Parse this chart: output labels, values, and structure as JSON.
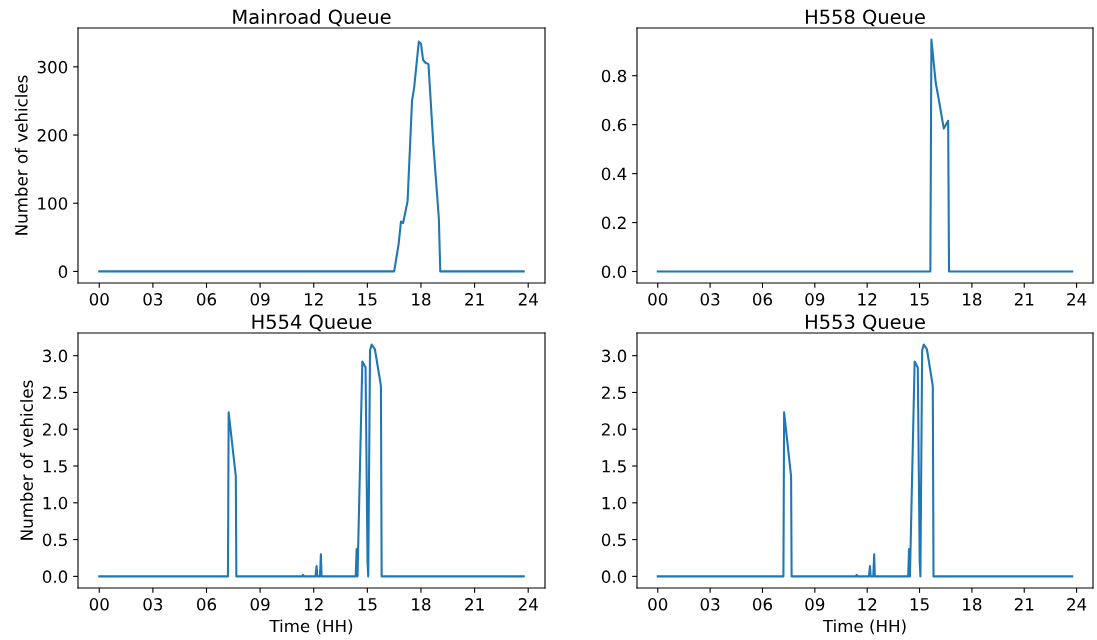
{
  "chart_data": [
    {
      "type": "line",
      "title": "Mainroad Queue",
      "ylabel": "Number of vehicles",
      "xlim": [
        -1.19,
        24.94
      ],
      "ylim": [
        -17,
        357
      ],
      "xticks": [
        {
          "value": 0,
          "label": "00"
        },
        {
          "value": 3,
          "label": "03"
        },
        {
          "value": 6,
          "label": "06"
        },
        {
          "value": 9,
          "label": "09"
        },
        {
          "value": 12,
          "label": "12"
        },
        {
          "value": 15,
          "label": "15"
        },
        {
          "value": 18,
          "label": "18"
        },
        {
          "value": 21,
          "label": "21"
        },
        {
          "value": 24,
          "label": "24"
        }
      ],
      "yticks": [
        0,
        100,
        200,
        300
      ],
      "series": [
        {
          "color": "#1f77b4",
          "x": [
            0,
            16.5,
            16.75,
            16.88,
            17.0,
            17.25,
            17.5,
            17.62,
            17.88,
            18.0,
            18.12,
            18.25,
            18.42,
            18.69,
            19.0,
            19.08,
            23.75
          ],
          "values": [
            0,
            0,
            40,
            73,
            71,
            103,
            250,
            270,
            337,
            334,
            310,
            306,
            304,
            187,
            78,
            0,
            0
          ]
        }
      ]
    },
    {
      "type": "line",
      "title": "H558 Queue",
      "xlim": [
        -1.19,
        24.94
      ],
      "ylim": [
        -0.047,
        0.995
      ],
      "xticks": [
        {
          "value": 0,
          "label": "00"
        },
        {
          "value": 3,
          "label": "03"
        },
        {
          "value": 6,
          "label": "06"
        },
        {
          "value": 9,
          "label": "09"
        },
        {
          "value": 12,
          "label": "12"
        },
        {
          "value": 15,
          "label": "15"
        },
        {
          "value": 18,
          "label": "18"
        },
        {
          "value": 21,
          "label": "21"
        },
        {
          "value": 24,
          "label": "24"
        }
      ],
      "yticks": [
        {
          "value": 0,
          "label": "0.0"
        },
        {
          "value": 0.2,
          "label": "0.2"
        },
        {
          "value": 0.4,
          "label": "0.4"
        },
        {
          "value": 0.6,
          "label": "0.6"
        },
        {
          "value": 0.8,
          "label": "0.8"
        }
      ],
      "series": [
        {
          "color": "#1f77b4",
          "x": [
            0,
            15.62,
            15.68,
            15.93,
            16.11,
            16.39,
            16.64,
            16.69,
            23.75
          ],
          "values": [
            0,
            0,
            0.948,
            0.77,
            0.7,
            0.584,
            0.616,
            0,
            0
          ]
        }
      ]
    },
    {
      "type": "line",
      "title": "H554 Queue",
      "xlabel": "Time (HH)",
      "ylabel": "Number of vehicles",
      "xlim": [
        -1.19,
        24.94
      ],
      "ylim": [
        -0.158,
        3.308
      ],
      "xticks": [
        {
          "value": 0,
          "label": "00"
        },
        {
          "value": 3,
          "label": "03"
        },
        {
          "value": 6,
          "label": "06"
        },
        {
          "value": 9,
          "label": "09"
        },
        {
          "value": 12,
          "label": "12"
        },
        {
          "value": 15,
          "label": "15"
        },
        {
          "value": 18,
          "label": "18"
        },
        {
          "value": 21,
          "label": "21"
        },
        {
          "value": 24,
          "label": "24"
        }
      ],
      "yticks": [
        {
          "value": 0,
          "label": "0.0"
        },
        {
          "value": 0.5,
          "label": "0.5"
        },
        {
          "value": 1,
          "label": "1.0"
        },
        {
          "value": 1.5,
          "label": "1.5"
        },
        {
          "value": 2,
          "label": "2.0"
        },
        {
          "value": 2.5,
          "label": "2.5"
        },
        {
          "value": 3,
          "label": "3.0"
        }
      ],
      "series": [
        {
          "color": "#1f77b4",
          "x": [
            0,
            7.2,
            7.24,
            7.64,
            7.67,
            11.35,
            11.4,
            11.45,
            12.1,
            12.16,
            12.2,
            12.35,
            12.4,
            12.44,
            14.35,
            14.4,
            14.45,
            14.72,
            14.9,
            15.01,
            15.05,
            15.15,
            15.24,
            15.42,
            15.76,
            15.8,
            23.75
          ],
          "values": [
            0,
            0,
            2.23,
            1.36,
            0,
            0,
            0.02,
            0,
            0,
            0.14,
            0,
            0,
            0.3,
            0,
            0,
            0.37,
            0,
            2.92,
            2.84,
            0.2,
            0,
            3.07,
            3.15,
            3.09,
            2.59,
            0,
            0
          ]
        }
      ]
    },
    {
      "type": "line",
      "title": "H553 Queue",
      "xlabel": "Time (HH)",
      "xlim": [
        -1.19,
        24.94
      ],
      "ylim": [
        -0.158,
        3.308
      ],
      "xticks": [
        {
          "value": 0,
          "label": "00"
        },
        {
          "value": 3,
          "label": "03"
        },
        {
          "value": 6,
          "label": "06"
        },
        {
          "value": 9,
          "label": "09"
        },
        {
          "value": 12,
          "label": "12"
        },
        {
          "value": 15,
          "label": "15"
        },
        {
          "value": 18,
          "label": "18"
        },
        {
          "value": 21,
          "label": "21"
        },
        {
          "value": 24,
          "label": "24"
        }
      ],
      "yticks": [
        {
          "value": 0,
          "label": "0.0"
        },
        {
          "value": 0.5,
          "label": "0.5"
        },
        {
          "value": 1,
          "label": "1.0"
        },
        {
          "value": 1.5,
          "label": "1.5"
        },
        {
          "value": 2,
          "label": "2.0"
        },
        {
          "value": 2.5,
          "label": "2.5"
        },
        {
          "value": 3,
          "label": "3.0"
        }
      ],
      "series": [
        {
          "color": "#1f77b4",
          "x": [
            0,
            7.2,
            7.24,
            7.64,
            7.67,
            11.35,
            11.4,
            11.45,
            12.1,
            12.16,
            12.2,
            12.35,
            12.4,
            12.44,
            14.35,
            14.4,
            14.45,
            14.72,
            14.9,
            15.01,
            15.05,
            15.15,
            15.24,
            15.42,
            15.76,
            15.8,
            23.75
          ],
          "values": [
            0,
            0,
            2.23,
            1.36,
            0,
            0,
            0.02,
            0,
            0,
            0.14,
            0,
            0,
            0.3,
            0,
            0,
            0.37,
            0,
            2.92,
            2.84,
            0.2,
            0,
            3.07,
            3.15,
            3.09,
            2.59,
            0,
            0
          ]
        }
      ]
    }
  ]
}
